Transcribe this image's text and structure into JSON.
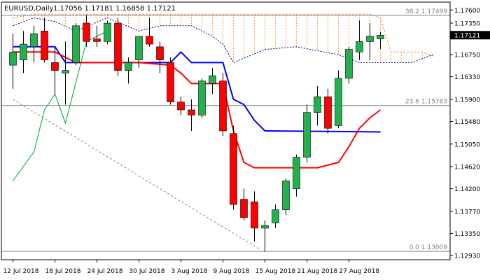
{
  "header": {
    "symbol": "EURUSD,Daily",
    "ohlc": "1.17056 1.17181 1.16858 1.17121"
  },
  "colors": {
    "bull": "#22b14c",
    "bear": "#ff0000",
    "tenkan": "#ff0000",
    "kijun": "#0000ff",
    "chikou": "#22b14c",
    "cloud": "#ff9933",
    "span_b": "#000080",
    "fib": "#808080",
    "current_price_bg": "#000000"
  },
  "chart_data": {
    "type": "candlestick",
    "instrument": "EURUSD",
    "timeframe": "Daily",
    "ylim": [
      1.1285,
      1.1775
    ],
    "y_ticks": [
      "1.17600",
      "1.17350",
      "1.16750",
      "1.16330",
      "1.15900",
      "1.15480",
      "1.15050",
      "1.14620",
      "1.14200",
      "1.13770",
      "1.13350",
      "1.12930"
    ],
    "current_price": "1.17121",
    "x_labels": [
      {
        "label": "12 Jul 2018",
        "i": 0
      },
      {
        "label": "18 Jul 2018",
        "i": 4
      },
      {
        "label": "24 Jul 2018",
        "i": 8
      },
      {
        "label": "30 Jul 2018",
        "i": 12
      },
      {
        "label": "3 Aug 2018",
        "i": 16
      },
      {
        "label": "9 Aug 2018",
        "i": 20
      },
      {
        "label": "15 Aug 2018",
        "i": 24
      },
      {
        "label": "21 Aug 2018",
        "i": 28
      },
      {
        "label": "27 Aug 2018",
        "i": 32
      }
    ],
    "candles": [
      {
        "o": 1.1655,
        "h": 1.1715,
        "l": 1.161,
        "c": 1.168
      },
      {
        "o": 1.1665,
        "h": 1.172,
        "l": 1.164,
        "c": 1.1695
      },
      {
        "o": 1.169,
        "h": 1.173,
        "l": 1.166,
        "c": 1.1715
      },
      {
        "o": 1.172,
        "h": 1.1745,
        "l": 1.166,
        "c": 1.1665
      },
      {
        "o": 1.166,
        "h": 1.169,
        "l": 1.16,
        "c": 1.1645
      },
      {
        "o": 1.164,
        "h": 1.17,
        "l": 1.158,
        "c": 1.1645
      },
      {
        "o": 1.166,
        "h": 1.1735,
        "l": 1.1655,
        "c": 1.173
      },
      {
        "o": 1.1735,
        "h": 1.175,
        "l": 1.169,
        "c": 1.17
      },
      {
        "o": 1.1705,
        "h": 1.173,
        "l": 1.169,
        "c": 1.17
      },
      {
        "o": 1.17,
        "h": 1.174,
        "l": 1.1695,
        "c": 1.1735
      },
      {
        "o": 1.1735,
        "h": 1.1745,
        "l": 1.1635,
        "c": 1.1645
      },
      {
        "o": 1.1645,
        "h": 1.167,
        "l": 1.162,
        "c": 1.166
      },
      {
        "o": 1.1665,
        "h": 1.171,
        "l": 1.165,
        "c": 1.171
      },
      {
        "o": 1.171,
        "h": 1.1745,
        "l": 1.169,
        "c": 1.1695
      },
      {
        "o": 1.169,
        "h": 1.17,
        "l": 1.164,
        "c": 1.1665
      },
      {
        "o": 1.166,
        "h": 1.167,
        "l": 1.158,
        "c": 1.1585
      },
      {
        "o": 1.1585,
        "h": 1.1595,
        "l": 1.156,
        "c": 1.157
      },
      {
        "o": 1.157,
        "h": 1.159,
        "l": 1.153,
        "c": 1.156
      },
      {
        "o": 1.156,
        "h": 1.163,
        "l": 1.1555,
        "c": 1.1625
      },
      {
        "o": 1.162,
        "h": 1.165,
        "l": 1.16,
        "c": 1.1635
      },
      {
        "o": 1.1625,
        "h": 1.164,
        "l": 1.152,
        "c": 1.153
      },
      {
        "o": 1.1525,
        "h": 1.154,
        "l": 1.138,
        "c": 1.139
      },
      {
        "o": 1.14,
        "h": 1.142,
        "l": 1.136,
        "c": 1.1365
      },
      {
        "o": 1.1395,
        "h": 1.1415,
        "l": 1.132,
        "c": 1.1345
      },
      {
        "o": 1.1345,
        "h": 1.136,
        "l": 1.13,
        "c": 1.135
      },
      {
        "o": 1.1355,
        "h": 1.139,
        "l": 1.1345,
        "c": 1.138
      },
      {
        "o": 1.138,
        "h": 1.144,
        "l": 1.137,
        "c": 1.1435
      },
      {
        "o": 1.142,
        "h": 1.1485,
        "l": 1.1405,
        "c": 1.148
      },
      {
        "o": 1.148,
        "h": 1.158,
        "l": 1.147,
        "c": 1.1565
      },
      {
        "o": 1.1565,
        "h": 1.1615,
        "l": 1.154,
        "c": 1.1595
      },
      {
        "o": 1.1595,
        "h": 1.161,
        "l": 1.1525,
        "c": 1.1535
      },
      {
        "o": 1.154,
        "h": 1.1645,
        "l": 1.1535,
        "c": 1.163
      },
      {
        "o": 1.163,
        "h": 1.169,
        "l": 1.162,
        "c": 1.1685
      },
      {
        "o": 1.168,
        "h": 1.174,
        "l": 1.1665,
        "c": 1.17
      },
      {
        "o": 1.17,
        "h": 1.1735,
        "l": 1.1665,
        "c": 1.171
      },
      {
        "o": 1.1705,
        "h": 1.1718,
        "l": 1.1686,
        "c": 1.1712
      }
    ],
    "series": [
      {
        "key": "kijun",
        "values": [
          [
            0,
            1.169
          ],
          [
            4,
            1.169
          ],
          [
            5,
            1.166
          ],
          [
            15,
            1.166
          ],
          [
            16,
            1.168
          ],
          [
            17,
            1.166
          ],
          [
            20,
            1.166
          ],
          [
            21,
            1.159
          ],
          [
            22,
            1.158
          ],
          [
            23,
            1.155
          ],
          [
            24,
            1.153
          ],
          [
            35,
            1.1528
          ]
        ]
      },
      {
        "key": "tenkan",
        "values": [
          [
            0,
            1.168
          ],
          [
            4,
            1.168
          ],
          [
            5,
            1.167
          ],
          [
            6,
            1.166
          ],
          [
            12,
            1.166
          ],
          [
            15,
            1.1655
          ],
          [
            16,
            1.164
          ],
          [
            17,
            1.162
          ],
          [
            20,
            1.162
          ],
          [
            21,
            1.153
          ],
          [
            22,
            1.147
          ],
          [
            23,
            1.146
          ],
          [
            29,
            1.146
          ],
          [
            31,
            1.147
          ],
          [
            32,
            1.15
          ],
          [
            33,
            1.1535
          ],
          [
            34,
            1.1555
          ],
          [
            35,
            1.157
          ]
        ]
      },
      {
        "key": "chikou",
        "values": [
          [
            0,
            1.1435
          ],
          [
            2,
            1.149
          ],
          [
            3,
            1.157
          ],
          [
            4,
            1.16
          ],
          [
            5,
            1.1545
          ],
          [
            7,
            1.17
          ],
          [
            9,
            1.172
          ]
        ]
      },
      {
        "key": "span_b",
        "values": [
          [
            0,
            1.173
          ],
          [
            2,
            1.1745
          ],
          [
            4,
            1.1738
          ],
          [
            6,
            1.172
          ],
          [
            9,
            1.1745
          ],
          [
            12,
            1.172
          ],
          [
            14,
            1.173
          ],
          [
            17,
            1.173
          ],
          [
            19,
            1.171
          ],
          [
            20,
            1.1695
          ],
          [
            21,
            1.166
          ],
          [
            24,
            1.1685
          ],
          [
            27,
            1.169
          ],
          [
            31,
            1.1675
          ],
          [
            33,
            1.166
          ],
          [
            38,
            1.166
          ],
          [
            40,
            1.1675
          ]
        ]
      },
      {
        "key": "span_a",
        "values": [
          [
            0,
            1.1745
          ],
          [
            2,
            1.1752
          ],
          [
            4,
            1.1752
          ],
          [
            15,
            1.1752
          ],
          [
            18,
            1.1752
          ],
          [
            24,
            1.1752
          ],
          [
            31,
            1.1752
          ],
          [
            34,
            1.1752
          ],
          [
            35,
            1.1745
          ],
          [
            36,
            1.168
          ],
          [
            39,
            1.168
          ],
          [
            40,
            1.1672
          ]
        ]
      }
    ],
    "fib_levels": [
      {
        "label": "38.2 1.17499",
        "value": 1.17499
      },
      {
        "label": "23.6 1.15783",
        "value": 1.15783
      },
      {
        "label": "0.0 1.13009",
        "value": 1.13009
      }
    ],
    "trendline": {
      "from": [
        0,
        1.159
      ],
      "to": [
        23.5,
        1.1305
      ]
    }
  }
}
